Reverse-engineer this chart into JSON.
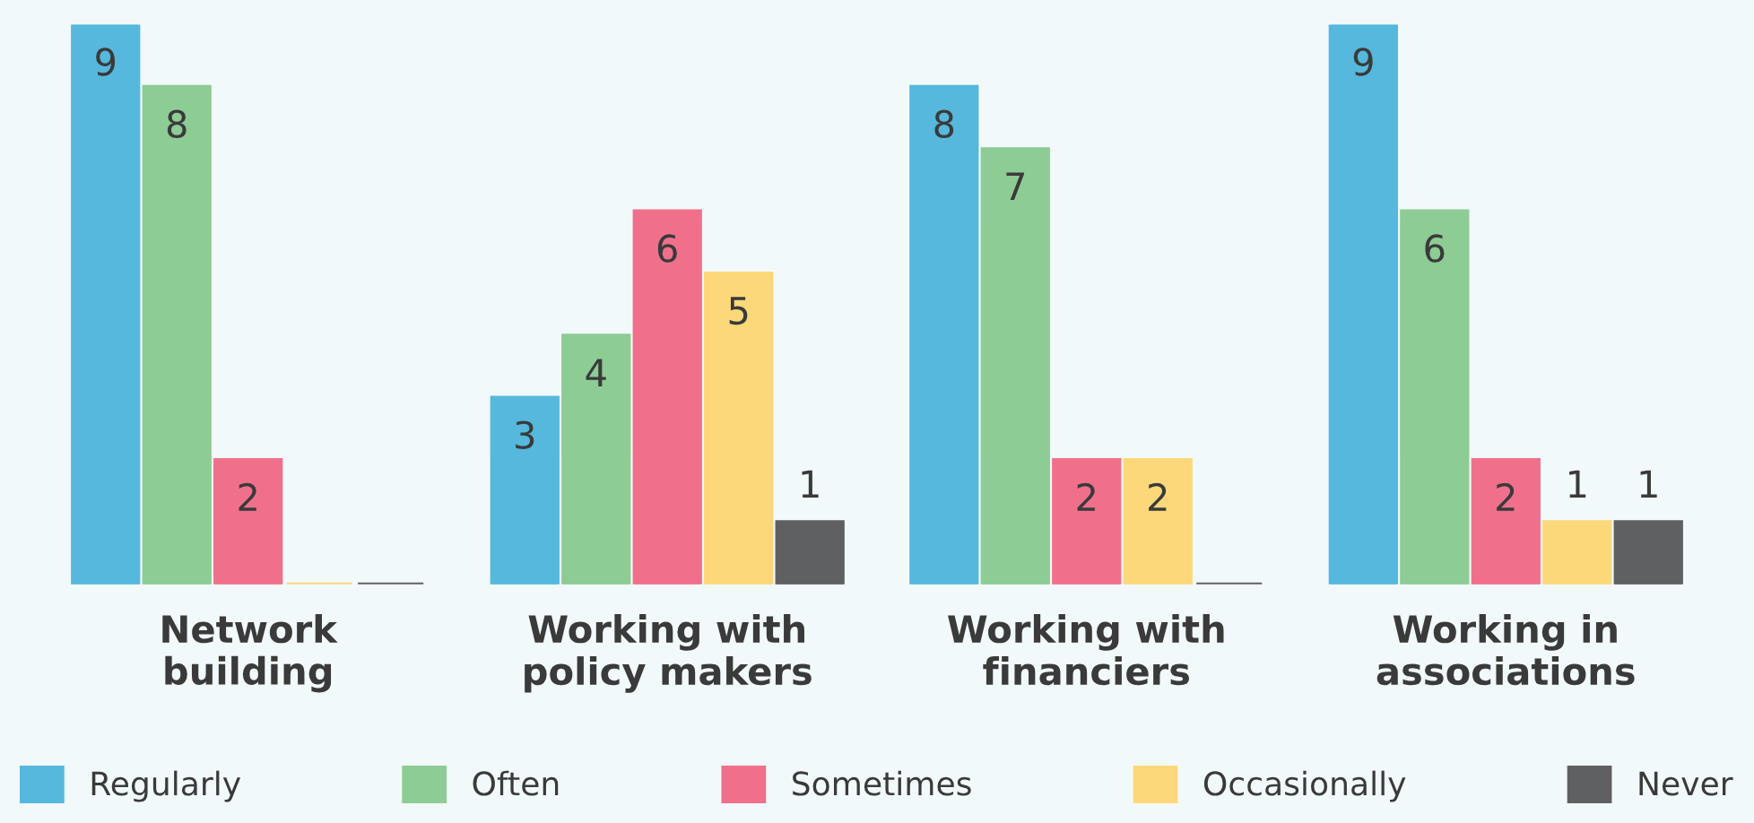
{
  "chart_data": {
    "type": "bar",
    "categories": [
      "Network\nbuilding",
      "Working with\npolicy makers",
      "Working with\nfinanciers",
      "Working in\nassociations"
    ],
    "series": [
      {
        "name": "Regularly",
        "color": "#56b8dc",
        "values": [
          9,
          3,
          8,
          9
        ],
        "value_labels": [
          "9",
          "3",
          "8",
          "9"
        ]
      },
      {
        "name": "Often",
        "color": "#8dcc94",
        "values": [
          8,
          4,
          7,
          6
        ],
        "value_labels": [
          "8",
          "4",
          "7",
          "6"
        ]
      },
      {
        "name": "Sometimes",
        "color": "#f0708c",
        "values": [
          2,
          6,
          2,
          2
        ],
        "value_labels": [
          "2",
          "6",
          "2",
          "2"
        ]
      },
      {
        "name": "Occasionally",
        "color": "#fdd87a",
        "values": [
          0,
          5,
          2,
          1
        ],
        "value_labels": [
          null,
          "5",
          "2",
          "1"
        ]
      },
      {
        "name": "Never",
        "color": "#5f6062",
        "values": [
          0,
          1,
          0,
          1
        ],
        "value_labels": [
          null,
          "1",
          null,
          "1"
        ]
      }
    ],
    "legend": "bottom",
    "grid": false
  }
}
